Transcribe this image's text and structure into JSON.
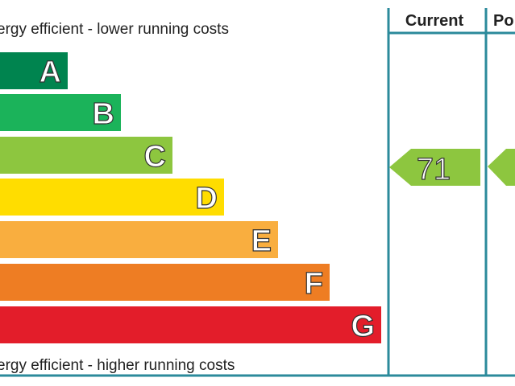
{
  "top_label": "ergy efficient - lower running costs",
  "bottom_label": "ergy efficient - higher running costs",
  "bands": [
    {
      "letter": "A",
      "color": "#00844f"
    },
    {
      "letter": "B",
      "color": "#1bb35a"
    },
    {
      "letter": "C",
      "color": "#8dc63f"
    },
    {
      "letter": "D",
      "color": "#ffdd00"
    },
    {
      "letter": "E",
      "color": "#f9ae3f"
    },
    {
      "letter": "F",
      "color": "#ee7d23"
    },
    {
      "letter": "G",
      "color": "#e31d2a"
    }
  ],
  "columns": [
    "Current",
    "Po"
  ],
  "current": {
    "value": 71,
    "color": "#8dc63f"
  }
}
